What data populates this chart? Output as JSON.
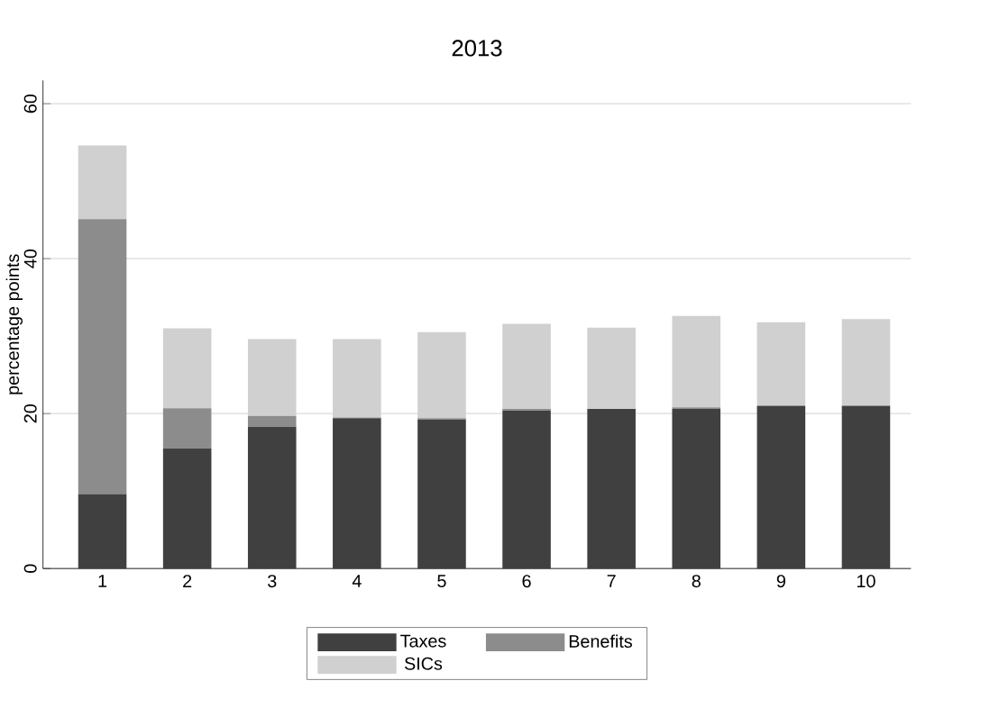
{
  "chart_data": {
    "type": "bar",
    "title": "2013",
    "ylabel": "percentage points",
    "stacked": true,
    "categories": [
      "1",
      "2",
      "3",
      "4",
      "5",
      "6",
      "7",
      "8",
      "9",
      "10"
    ],
    "series": [
      {
        "name": "Taxes",
        "color": "#404040",
        "values": [
          9.6,
          15.5,
          18.3,
          19.4,
          19.2,
          20.4,
          20.6,
          20.6,
          21.0,
          21.0
        ]
      },
      {
        "name": "Benefits",
        "color": "#8c8c8c",
        "values": [
          35.5,
          5.2,
          1.4,
          0.1,
          0.2,
          0.2,
          0,
          0.2,
          0,
          0
        ]
      },
      {
        "name": "SICs",
        "color": "#d0d0d0",
        "values": [
          9.5,
          10.3,
          9.9,
          10.1,
          11.1,
          11.0,
          10.5,
          11.8,
          10.8,
          11.2
        ]
      }
    ],
    "ylim": [
      0,
      63
    ],
    "yticks": [
      0,
      20,
      40,
      60
    ],
    "grid": "y",
    "legend": "bottom"
  }
}
